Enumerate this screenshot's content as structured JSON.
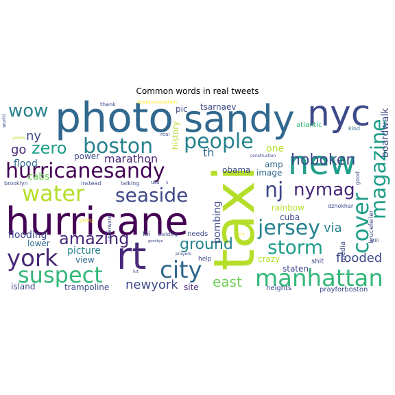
{
  "title": "Common words in real tweets",
  "palette": {
    "dark_purple": "#440154",
    "purple": "#482878",
    "indigo": "#3e4989",
    "blue": "#31688e",
    "steel": "#26828e",
    "teal": "#1f9e89",
    "green_teal": "#35b779",
    "green": "#6ece58",
    "lime": "#b5de2b",
    "yellow": "#fde725"
  },
  "words": [
    {
      "id": "photo",
      "text": "photo",
      "color": "#31688e"
    },
    {
      "id": "sandy",
      "text": "sandy",
      "color": "#31688e"
    },
    {
      "id": "nyc",
      "text": "nyc",
      "color": "#3e4989"
    },
    {
      "id": "hurricane",
      "text": "hurricane",
      "color": "#440154"
    },
    {
      "id": "taxi",
      "text": "taxi",
      "color": "#b5de2b"
    },
    {
      "id": "new",
      "text": "new",
      "color": "#1f9e89"
    },
    {
      "id": "hurricanesandy",
      "text": "hurricanesandy",
      "color": "#440154"
    },
    {
      "id": "boston",
      "text": "boston",
      "color": "#26828e"
    },
    {
      "id": "people",
      "text": "people",
      "color": "#26828e"
    },
    {
      "id": "rt",
      "text": "rt",
      "color": "#482878"
    },
    {
      "id": "york",
      "text": "york",
      "color": "#482878"
    },
    {
      "id": "wow",
      "text": "wow",
      "color": "#26828e"
    },
    {
      "id": "water",
      "text": "water",
      "color": "#b5de2b"
    },
    {
      "id": "seaside",
      "text": "seaside",
      "color": "#3e4989"
    },
    {
      "id": "suspect",
      "text": "suspect",
      "color": "#35b779"
    },
    {
      "id": "city",
      "text": "city",
      "color": "#31688e"
    },
    {
      "id": "manhattan",
      "text": "manhattan",
      "color": "#35b779"
    },
    {
      "id": "jersey",
      "text": "jersey",
      "color": "#26828e"
    },
    {
      "id": "storm",
      "text": "storm",
      "color": "#1f9e89"
    },
    {
      "id": "cover",
      "text": "cover",
      "color": "#1f9e89"
    },
    {
      "id": "magazine",
      "text": "magazine",
      "color": "#1f9e89"
    },
    {
      "id": "nj",
      "text": "nj",
      "color": "#3e4989"
    },
    {
      "id": "nymag",
      "text": "nymag",
      "color": "#482878"
    },
    {
      "id": "hoboken",
      "text": "hoboken",
      "color": "#3e4989"
    },
    {
      "id": "zero",
      "text": "zero",
      "color": "#1f9e89"
    },
    {
      "id": "amazing",
      "text": "amazing",
      "color": "#482878"
    },
    {
      "id": "ground",
      "text": "ground",
      "color": "#26828e"
    },
    {
      "id": "east",
      "text": "east",
      "color": "#6ece58"
    },
    {
      "id": "flooded",
      "text": "flooded",
      "color": "#3e4989"
    },
    {
      "id": "newyork",
      "text": "newyork",
      "color": "#3e4989"
    },
    {
      "id": "marathon",
      "text": "marathon",
      "color": "#482878"
    },
    {
      "id": "via",
      "text": "via",
      "color": "#26828e"
    },
    {
      "id": "go",
      "text": "go",
      "color": "#482878"
    },
    {
      "id": "ny",
      "text": "ny",
      "color": "#3e4989"
    },
    {
      "id": "flood",
      "text": "flood",
      "color": "#31688e"
    },
    {
      "id": "cabs",
      "text": "cabs",
      "color": "#6ece58"
    },
    {
      "id": "power",
      "text": "power",
      "color": "#3e4989"
    },
    {
      "id": "flooding",
      "text": "flooding",
      "color": "#3e4989"
    },
    {
      "id": "lower",
      "text": "lower",
      "color": "#31688e"
    },
    {
      "id": "picture",
      "text": "picture",
      "color": "#26828e"
    },
    {
      "id": "view",
      "text": "view",
      "color": "#31688e"
    },
    {
      "id": "island",
      "text": "island",
      "color": "#3e4989"
    },
    {
      "id": "trampoline",
      "text": "trampoline",
      "color": "#3e4989"
    },
    {
      "id": "site",
      "text": "site",
      "color": "#482878"
    },
    {
      "id": "th",
      "text": "th",
      "color": "#31688e"
    },
    {
      "id": "obama",
      "text": "obama",
      "color": "#3e4989"
    },
    {
      "id": "bombing",
      "text": "bombing",
      "color": "#3e4989"
    },
    {
      "id": "history",
      "text": "history",
      "color": "#b5de2b"
    },
    {
      "id": "pic",
      "text": "pic",
      "color": "#3e4989"
    },
    {
      "id": "tsarnaev",
      "text": "tsarnaev",
      "color": "#3e4989"
    },
    {
      "id": "one",
      "text": "one",
      "color": "#b5de2b"
    },
    {
      "id": "amp",
      "text": "amp",
      "color": "#31688e"
    },
    {
      "id": "image",
      "text": "image",
      "color": "#31688e"
    },
    {
      "id": "cuba",
      "text": "cuba",
      "color": "#3e4989"
    },
    {
      "id": "rainbow",
      "text": "rainbow",
      "color": "#b5de2b"
    },
    {
      "id": "crazy",
      "text": "crazy",
      "color": "#b5de2b"
    },
    {
      "id": "staten",
      "text": "staten",
      "color": "#3e4989"
    },
    {
      "id": "shit",
      "text": "shit",
      "color": "#3e4989"
    },
    {
      "id": "atlantic",
      "text": "atlantic",
      "color": "#35b779"
    },
    {
      "id": "boardwalk",
      "text": "boardwalk",
      "color": "#3e4989"
    },
    {
      "id": "kind",
      "text": "kind",
      "color": "#31688e"
    },
    {
      "id": "brucefeiler",
      "text": "brucefeiler",
      "color": "#3e4989"
    },
    {
      "id": "dzhokhar",
      "text": "dzhokhar",
      "color": "#3e4989"
    },
    {
      "id": "good",
      "text": "good",
      "color": "#3e4989"
    },
    {
      "id": "media",
      "text": "media",
      "color": "#3e4989"
    },
    {
      "id": "still",
      "text": "still",
      "color": "#3e4989"
    },
    {
      "id": "heights",
      "text": "heights",
      "color": "#3e4989"
    },
    {
      "id": "prayforboston",
      "text": "prayforboston",
      "color": "#3e4989"
    },
    {
      "id": "needs",
      "text": "needs",
      "color": "#3e4989"
    },
    {
      "id": "help",
      "text": "help",
      "color": "#3e4989"
    },
    {
      "id": "fbi",
      "text": "fbi",
      "color": "#3e4989"
    },
    {
      "id": "building",
      "text": "building",
      "color": "#3e4989"
    },
    {
      "id": "prayers",
      "text": "prayers",
      "color": "#3e4989"
    },
    {
      "id": "thank",
      "text": "thank",
      "color": "#3e4989"
    },
    {
      "id": "bostonmarathon",
      "text": "bostonmarathon",
      "color": "#fde725"
    },
    {
      "id": "real",
      "text": "real",
      "color": "#3e4989"
    },
    {
      "id": "construction",
      "text": "construction",
      "color": "#3e4989"
    },
    {
      "id": "world",
      "text": "world",
      "color": "#3e4989"
    },
    {
      "id": "yellow",
      "text": "yellow",
      "color": "#b5de2b"
    },
    {
      "id": "brooklyn",
      "text": "brooklyn",
      "color": "#3e4989"
    },
    {
      "id": "instead",
      "text": "instead",
      "color": "#3e4989"
    },
    {
      "id": "talking",
      "text": "talking",
      "color": "#3e4989"
    },
    {
      "id": "usa",
      "text": "usa",
      "color": "#3e4989"
    },
    {
      "id": "underwater",
      "text": "underwater",
      "color": "#3e4989"
    },
    {
      "id": "going",
      "text": "going",
      "color": "#fde725"
    },
    {
      "id": "goodbye",
      "text": "goodbye",
      "color": "#3e4989"
    },
    {
      "id": "hit",
      "text": "hit",
      "color": "#3e4989"
    },
    {
      "id": "s",
      "text": "s",
      "color": "#3e4989"
    },
    {
      "id": "see",
      "text": "see",
      "color": "#fde725"
    }
  ]
}
